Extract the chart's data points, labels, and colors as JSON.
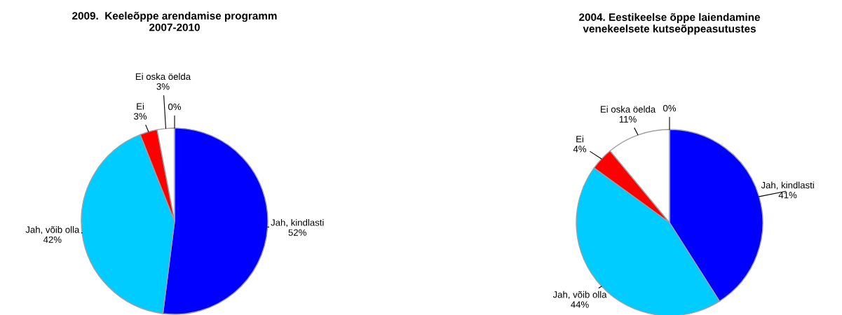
{
  "chart_data": [
    {
      "type": "pie",
      "title": "2009.  Keeleõppe arendamise programm\n2007-2010",
      "categories": [
        "Jah, kindlasti",
        "Jah, võib olla",
        "Ei",
        "Ei oska öelda",
        null
      ],
      "values": [
        52,
        42,
        3,
        3,
        0
      ],
      "value_labels": [
        "52%",
        "42%",
        "3%",
        "3%",
        "0%"
      ],
      "colors": [
        "#0000ff",
        "#00ccff",
        "#ff0000",
        "#ffffff",
        "#ffffff"
      ]
    },
    {
      "type": "pie",
      "title": "2004. Eestikeelse õppe laiendamine\nvenekeelsete kutseõppeasutustes",
      "categories": [
        "Jah, kindlasti",
        "Jah, võib olla",
        "Ei",
        "Ei oska öelda",
        null
      ],
      "values": [
        41,
        44,
        4,
        11,
        0
      ],
      "value_labels": [
        "41%",
        "44%",
        "4%",
        "11%",
        "0%"
      ],
      "colors": [
        "#0000ff",
        "#00ccff",
        "#ff0000",
        "#ffffff",
        "#ffffff"
      ]
    }
  ]
}
